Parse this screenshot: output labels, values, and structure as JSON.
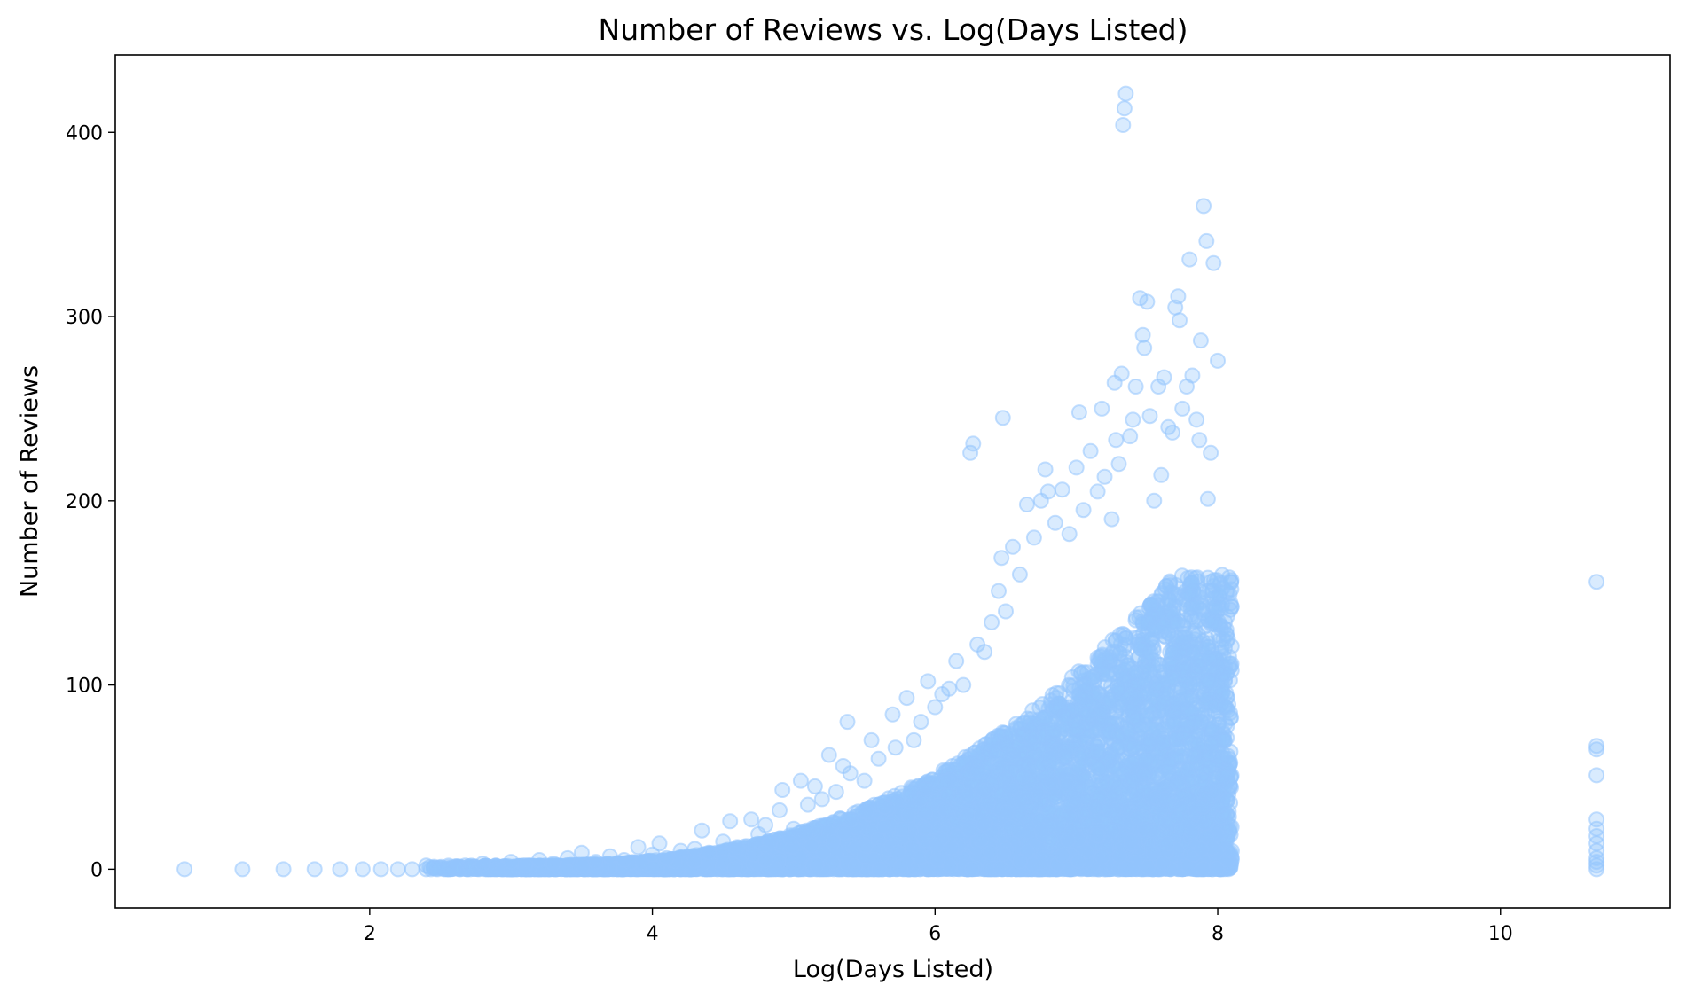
{
  "chart_data": {
    "type": "scatter",
    "title": "Number of Reviews vs. Log(Days Listed)",
    "xlabel": "Log(Days Listed)",
    "ylabel": "Number of Reviews",
    "xlim": [
      0.2,
      11.2
    ],
    "ylim": [
      -21,
      442
    ],
    "xticks": [
      {
        "value": 2,
        "label": "2"
      },
      {
        "value": 4,
        "label": "4"
      },
      {
        "value": 6,
        "label": "6"
      },
      {
        "value": 8,
        "label": "8"
      },
      {
        "value": 10,
        "label": "10"
      }
    ],
    "yticks": [
      {
        "value": 0,
        "label": "0"
      },
      {
        "value": 100,
        "label": "100"
      },
      {
        "value": 200,
        "label": "200"
      },
      {
        "value": 300,
        "label": "300"
      },
      {
        "value": 400,
        "label": "400"
      }
    ],
    "grid": false,
    "legend": "none",
    "marker_color": "#93c5fd",
    "marker_alpha": 0.35,
    "series": [
      {
        "points": [
          [
            0.69,
            0
          ],
          [
            1.1,
            0
          ],
          [
            1.39,
            0
          ],
          [
            1.61,
            0
          ],
          [
            1.79,
            0
          ],
          [
            1.95,
            0
          ],
          [
            2.08,
            0
          ],
          [
            2.2,
            0
          ],
          [
            2.3,
            0
          ],
          [
            2.4,
            0
          ],
          [
            2.48,
            0
          ],
          [
            2.56,
            0
          ],
          [
            2.64,
            0
          ],
          [
            2.71,
            0
          ],
          [
            2.77,
            0
          ],
          [
            2.83,
            0
          ],
          [
            2.89,
            0
          ],
          [
            2.94,
            0
          ],
          [
            3.0,
            0
          ],
          [
            2.4,
            2
          ],
          [
            2.6,
            1
          ],
          [
            2.8,
            3
          ],
          [
            3.0,
            4
          ],
          [
            3.1,
            2
          ],
          [
            3.2,
            5
          ],
          [
            3.3,
            3
          ],
          [
            3.4,
            6
          ],
          [
            3.5,
            9
          ],
          [
            3.6,
            4
          ],
          [
            3.7,
            7
          ],
          [
            3.8,
            5
          ],
          [
            3.9,
            12
          ],
          [
            4.0,
            8
          ],
          [
            4.05,
            14
          ],
          [
            4.1,
            6
          ],
          [
            4.2,
            10
          ],
          [
            4.3,
            11
          ],
          [
            4.35,
            21
          ],
          [
            4.4,
            9
          ],
          [
            4.5,
            15
          ],
          [
            4.55,
            26
          ],
          [
            4.6,
            12
          ],
          [
            4.7,
            27
          ],
          [
            4.75,
            19
          ],
          [
            4.8,
            24
          ],
          [
            4.9,
            32
          ],
          [
            4.92,
            43
          ],
          [
            5.0,
            22
          ],
          [
            5.05,
            48
          ],
          [
            5.1,
            35
          ],
          [
            5.15,
            45
          ],
          [
            5.2,
            38
          ],
          [
            5.25,
            62
          ],
          [
            5.3,
            42
          ],
          [
            5.35,
            56
          ],
          [
            5.38,
            80
          ],
          [
            5.4,
            52
          ],
          [
            5.5,
            48
          ],
          [
            5.55,
            70
          ],
          [
            5.6,
            60
          ],
          [
            5.7,
            84
          ],
          [
            5.72,
            66
          ],
          [
            5.8,
            93
          ],
          [
            5.85,
            70
          ],
          [
            5.9,
            80
          ],
          [
            5.95,
            102
          ],
          [
            6.0,
            88
          ],
          [
            6.05,
            95
          ],
          [
            6.1,
            98
          ],
          [
            6.15,
            113
          ],
          [
            6.2,
            100
          ],
          [
            6.25,
            226
          ],
          [
            6.27,
            231
          ],
          [
            6.3,
            122
          ],
          [
            6.35,
            118
          ],
          [
            6.4,
            134
          ],
          [
            6.45,
            151
          ],
          [
            6.47,
            169
          ],
          [
            6.48,
            245
          ],
          [
            6.5,
            140
          ],
          [
            6.55,
            175
          ],
          [
            6.6,
            160
          ],
          [
            6.65,
            198
          ],
          [
            6.7,
            180
          ],
          [
            6.75,
            200
          ],
          [
            6.78,
            217
          ],
          [
            6.8,
            205
          ],
          [
            6.85,
            188
          ],
          [
            6.9,
            206
          ],
          [
            6.95,
            182
          ],
          [
            7.0,
            218
          ],
          [
            7.02,
            248
          ],
          [
            7.05,
            195
          ],
          [
            7.1,
            227
          ],
          [
            7.15,
            205
          ],
          [
            7.18,
            250
          ],
          [
            7.2,
            213
          ],
          [
            7.25,
            190
          ],
          [
            7.27,
            264
          ],
          [
            7.28,
            233
          ],
          [
            7.3,
            220
          ],
          [
            7.32,
            269
          ],
          [
            7.33,
            404
          ],
          [
            7.34,
            413
          ],
          [
            7.35,
            421
          ],
          [
            7.38,
            235
          ],
          [
            7.4,
            244
          ],
          [
            7.42,
            262
          ],
          [
            7.45,
            310
          ],
          [
            7.47,
            290
          ],
          [
            7.48,
            283
          ],
          [
            7.5,
            308
          ],
          [
            7.52,
            246
          ],
          [
            7.55,
            200
          ],
          [
            7.58,
            262
          ],
          [
            7.6,
            214
          ],
          [
            7.62,
            267
          ],
          [
            7.65,
            240
          ],
          [
            7.68,
            237
          ],
          [
            7.7,
            305
          ],
          [
            7.72,
            311
          ],
          [
            7.73,
            298
          ],
          [
            7.75,
            250
          ],
          [
            7.78,
            262
          ],
          [
            7.8,
            331
          ],
          [
            7.82,
            268
          ],
          [
            7.85,
            244
          ],
          [
            7.87,
            233
          ],
          [
            7.88,
            287
          ],
          [
            7.9,
            360
          ],
          [
            7.92,
            341
          ],
          [
            7.93,
            201
          ],
          [
            7.95,
            226
          ],
          [
            7.97,
            329
          ],
          [
            8.0,
            276
          ],
          [
            8.02,
            150
          ],
          [
            8.05,
            120
          ],
          [
            8.08,
            60
          ],
          [
            8.1,
            10
          ],
          [
            10.68,
            0
          ],
          [
            10.68,
            2
          ],
          [
            10.68,
            4
          ],
          [
            10.68,
            6
          ],
          [
            10.68,
            10
          ],
          [
            10.68,
            14
          ],
          [
            10.68,
            18
          ],
          [
            10.68,
            22
          ],
          [
            10.68,
            27
          ],
          [
            10.68,
            51
          ],
          [
            10.68,
            65
          ],
          [
            10.68,
            67
          ],
          [
            10.68,
            156
          ]
        ]
      }
    ]
  }
}
